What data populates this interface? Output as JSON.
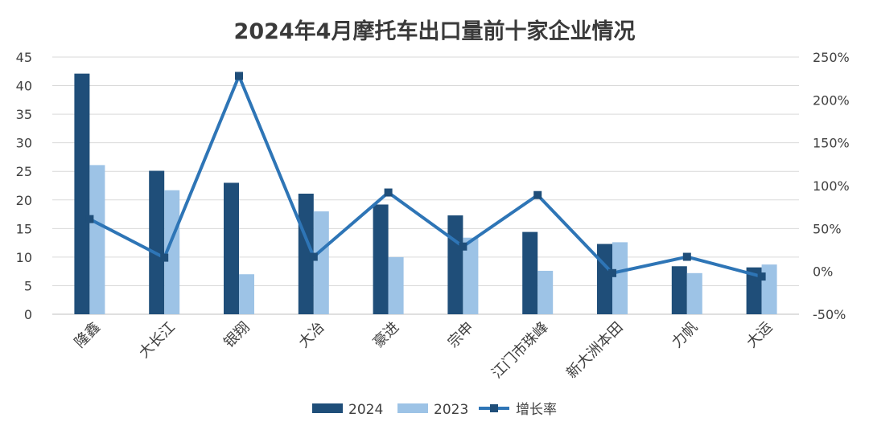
{
  "chart_data": {
    "type": "bar",
    "title": "2024年4月摩托车出口量前十家企业情况",
    "categories": [
      "隆鑫",
      "大长江",
      "银翔",
      "大冶",
      "豪进",
      "宗申",
      "江门市珠峰",
      "新大洲本田",
      "力帆",
      "大运"
    ],
    "series": [
      {
        "name": "2024",
        "type": "bar",
        "axis": "left",
        "color": "#1f4e79",
        "values": [
          42.1,
          25.1,
          23.0,
          21.1,
          19.2,
          17.3,
          14.4,
          12.3,
          8.4,
          8.2
        ]
      },
      {
        "name": "2023",
        "type": "bar",
        "axis": "left",
        "color": "#9dc3e6",
        "values": [
          26.1,
          21.7,
          7.0,
          18.0,
          10.0,
          13.4,
          7.6,
          12.6,
          7.2,
          8.7
        ]
      },
      {
        "name": "增长率",
        "type": "line",
        "axis": "right",
        "color": "#2e75b6",
        "values": [
          61,
          16,
          228,
          17,
          92,
          29,
          89,
          -2,
          17,
          -6
        ]
      }
    ],
    "left_axis": {
      "min": 0,
      "max": 45,
      "step": 5,
      "ticks": [
        "0",
        "5",
        "10",
        "15",
        "20",
        "25",
        "30",
        "35",
        "40",
        "45"
      ]
    },
    "right_axis": {
      "min": -50,
      "max": 250,
      "step": 50,
      "ticks": [
        "-50%",
        "0%",
        "50%",
        "100%",
        "150%",
        "200%",
        "250%"
      ]
    },
    "grid": true,
    "legend_position": "bottom"
  }
}
